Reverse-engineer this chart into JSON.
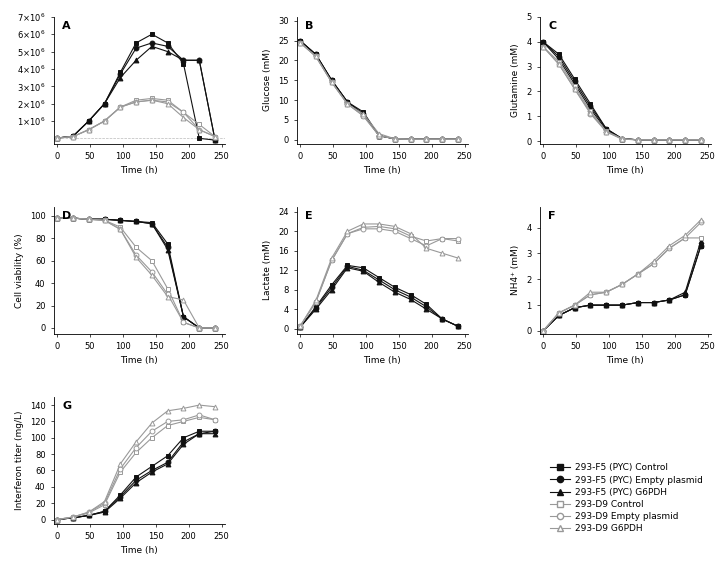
{
  "legend_labels": [
    "293-F5 (PYC) Control",
    "293-F5 (PYC) Empty plasmid",
    "293-F5 (PYC) G6PDH",
    "293-D9 Control",
    "293-D9 Empty plasmid",
    "293-D9 G6PDH"
  ],
  "time": [
    0,
    24,
    48,
    72,
    96,
    120,
    144,
    168,
    192,
    216,
    240
  ],
  "A_F5_ctrl": [
    20000.0,
    120000.0,
    1000000.0,
    2000000.0,
    3800000.0,
    5500000.0,
    6000000.0,
    5500000.0,
    4300000.0,
    0.0,
    -100000.0
  ],
  "A_F5_empty": [
    20000.0,
    120000.0,
    1000000.0,
    2000000.0,
    3700000.0,
    5200000.0,
    5500000.0,
    5300000.0,
    4500000.0,
    4500000.0,
    -100000.0
  ],
  "A_F5_g6pdh": [
    20000.0,
    120000.0,
    1000000.0,
    2000000.0,
    3500000.0,
    4500000.0,
    5300000.0,
    5000000.0,
    4500000.0,
    4500000.0,
    -100000.0
  ],
  "A_D9_ctrl": [
    20000.0,
    100000.0,
    500000.0,
    1000000.0,
    1800000.0,
    2200000.0,
    2300000.0,
    2200000.0,
    1500000.0,
    800000.0,
    100000.0
  ],
  "A_D9_empty": [
    20000.0,
    100000.0,
    500000.0,
    1000000.0,
    1800000.0,
    2100000.0,
    2200000.0,
    2100000.0,
    1500000.0,
    500000.0,
    100000.0
  ],
  "A_D9_g6pdh": [
    20000.0,
    100000.0,
    500000.0,
    1000000.0,
    1800000.0,
    2100000.0,
    2200000.0,
    2000000.0,
    1200000.0,
    500000.0,
    100000.0
  ],
  "B_F5_ctrl": [
    25.0,
    21.5,
    15.0,
    9.5,
    7.0,
    1.0,
    0.2,
    0.1,
    0.1,
    0.1,
    0.1
  ],
  "B_F5_empty": [
    25.0,
    21.5,
    15.0,
    9.5,
    6.5,
    1.0,
    0.2,
    0.1,
    0.1,
    0.1,
    0.1
  ],
  "B_F5_g6pdh": [
    25.0,
    21.5,
    15.0,
    9.5,
    6.5,
    1.0,
    0.2,
    0.1,
    0.1,
    0.1,
    0.1
  ],
  "B_D9_ctrl": [
    24.5,
    21.0,
    14.5,
    9.0,
    6.0,
    1.0,
    0.2,
    0.1,
    0.1,
    0.1,
    0.1
  ],
  "B_D9_empty": [
    24.5,
    21.0,
    14.5,
    9.0,
    6.0,
    1.0,
    0.2,
    0.1,
    0.1,
    0.1,
    0.1
  ],
  "B_D9_g6pdh": [
    24.5,
    21.0,
    14.5,
    9.0,
    6.5,
    1.5,
    0.2,
    0.1,
    0.1,
    0.1,
    0.1
  ],
  "C_F5_ctrl": [
    4.0,
    3.5,
    2.5,
    1.5,
    0.5,
    0.1,
    0.05,
    0.05,
    0.05,
    0.05,
    0.05
  ],
  "C_F5_empty": [
    4.0,
    3.4,
    2.4,
    1.4,
    0.5,
    0.1,
    0.05,
    0.05,
    0.05,
    0.05,
    0.05
  ],
  "C_F5_g6pdh": [
    4.0,
    3.3,
    2.3,
    1.3,
    0.45,
    0.1,
    0.05,
    0.05,
    0.05,
    0.05,
    0.05
  ],
  "C_D9_ctrl": [
    3.8,
    3.2,
    2.2,
    1.2,
    0.4,
    0.1,
    0.05,
    0.05,
    0.05,
    0.05,
    0.05
  ],
  "C_D9_empty": [
    3.8,
    3.1,
    2.1,
    1.1,
    0.38,
    0.08,
    0.05,
    0.05,
    0.05,
    0.05,
    0.05
  ],
  "C_D9_g6pdh": [
    3.8,
    3.1,
    2.1,
    1.15,
    0.38,
    0.08,
    0.05,
    0.05,
    0.05,
    0.05,
    0.05
  ],
  "D_F5_ctrl": [
    98,
    98,
    97,
    97,
    96,
    95,
    94,
    75,
    10,
    0,
    0
  ],
  "D_F5_empty": [
    98,
    98,
    97,
    97,
    96,
    95,
    93,
    72,
    10,
    0,
    0
  ],
  "D_F5_g6pdh": [
    98,
    98,
    97,
    97,
    96,
    95,
    93,
    70,
    10,
    0,
    0
  ],
  "D_D9_ctrl": [
    98,
    98,
    97,
    96,
    90,
    72,
    60,
    35,
    5,
    0,
    0
  ],
  "D_D9_empty": [
    98,
    98,
    97,
    96,
    88,
    65,
    50,
    30,
    5,
    0,
    0
  ],
  "D_D9_g6pdh": [
    98,
    98,
    97,
    96,
    88,
    63,
    47,
    28,
    25,
    0,
    0
  ],
  "E_F5_ctrl": [
    0.3,
    4.5,
    9.0,
    13.0,
    12.5,
    10.5,
    8.5,
    7.0,
    5.0,
    2.0,
    0.5
  ],
  "E_F5_empty": [
    0.3,
    4.3,
    8.5,
    12.8,
    12.0,
    10.0,
    8.0,
    6.5,
    4.5,
    2.0,
    0.5
  ],
  "E_F5_g6pdh": [
    0.3,
    4.0,
    8.0,
    12.5,
    11.8,
    9.5,
    7.5,
    6.0,
    4.0,
    2.0,
    0.5
  ],
  "E_D9_ctrl": [
    0.5,
    5.5,
    14.0,
    19.5,
    20.8,
    21.0,
    20.5,
    19.0,
    18.0,
    18.5,
    18.0
  ],
  "E_D9_empty": [
    0.5,
    5.5,
    14.0,
    19.5,
    20.5,
    20.5,
    20.0,
    18.5,
    17.0,
    18.5,
    18.5
  ],
  "E_D9_g6pdh": [
    0.5,
    5.8,
    14.5,
    20.0,
    21.5,
    21.5,
    21.0,
    19.5,
    16.5,
    15.5,
    14.5
  ],
  "F_F5_ctrl": [
    0.0,
    0.6,
    0.9,
    1.0,
    1.0,
    1.0,
    1.1,
    1.1,
    1.2,
    1.4,
    3.3
  ],
  "F_F5_empty": [
    0.0,
    0.6,
    0.9,
    1.0,
    1.0,
    1.0,
    1.1,
    1.1,
    1.2,
    1.4,
    3.3
  ],
  "F_F5_g6pdh": [
    0.0,
    0.6,
    0.9,
    1.0,
    1.0,
    1.0,
    1.1,
    1.1,
    1.2,
    1.5,
    3.5
  ],
  "F_D9_ctrl": [
    0.0,
    0.7,
    1.0,
    1.4,
    1.5,
    1.8,
    2.2,
    2.6,
    3.2,
    3.6,
    3.6
  ],
  "F_D9_empty": [
    0.0,
    0.7,
    1.0,
    1.4,
    1.5,
    1.8,
    2.2,
    2.6,
    3.2,
    3.6,
    4.2
  ],
  "F_D9_g6pdh": [
    0.0,
    0.7,
    1.0,
    1.5,
    1.5,
    1.8,
    2.2,
    2.7,
    3.3,
    3.7,
    4.3
  ],
  "G_time": [
    0,
    24,
    48,
    72,
    96,
    120,
    144,
    168,
    192,
    216,
    240
  ],
  "G_F5_ctrl": [
    0,
    2,
    5,
    10,
    30,
    52,
    65,
    78,
    100,
    108,
    108
  ],
  "G_F5_empty": [
    0,
    2,
    5,
    10,
    28,
    48,
    60,
    70,
    95,
    105,
    108
  ],
  "G_F5_g6pdh": [
    0,
    2,
    5,
    9,
    26,
    45,
    58,
    68,
    92,
    105,
    105
  ],
  "G_D9_ctrl": [
    0,
    3,
    8,
    18,
    58,
    82,
    100,
    115,
    120,
    125,
    122
  ],
  "G_D9_empty": [
    0,
    3,
    9,
    20,
    62,
    88,
    108,
    120,
    122,
    128,
    122
  ],
  "G_D9_g6pdh": [
    0,
    3,
    9,
    22,
    68,
    95,
    118,
    133,
    136,
    140,
    138
  ]
}
